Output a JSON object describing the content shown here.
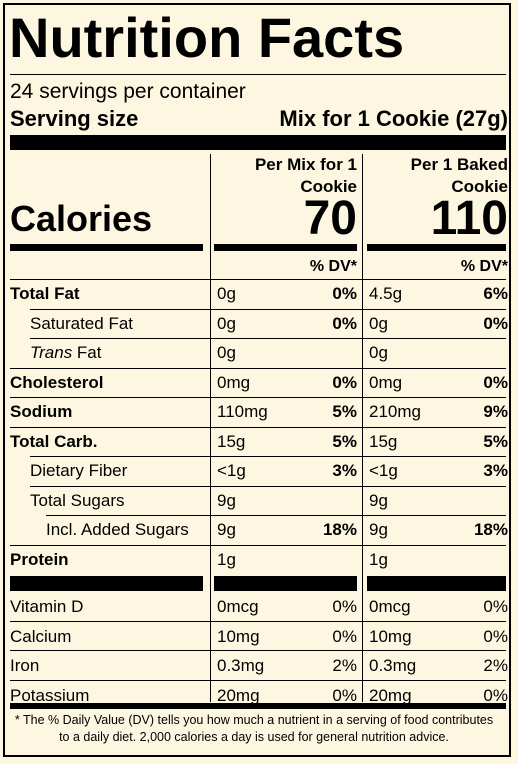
{
  "title": "Nutrition Facts",
  "servings_per_container": "24 servings per container",
  "serving_size_label": "Serving size",
  "serving_size_value": "Mix for 1 Cookie (27g)",
  "columns": [
    {
      "header_line1": "Per Mix for 1",
      "header_line2": "Cookie",
      "calories": "70"
    },
    {
      "header_line1": "Per 1 Baked",
      "header_line2": "Cookie",
      "calories": "110"
    }
  ],
  "calories_label": "Calories",
  "dv_label": "% DV*",
  "nutrients": [
    {
      "name": "Total Fat",
      "bold": true,
      "indent": 0,
      "mix_amt": "0g",
      "mix_dv": "0%",
      "baked_amt": "4.5g",
      "baked_dv": "6%"
    },
    {
      "name": "Saturated Fat",
      "bold": false,
      "indent": 1,
      "mix_amt": "0g",
      "mix_dv": "0%",
      "baked_amt": "0g",
      "baked_dv": "0%"
    },
    {
      "name_italic": "Trans",
      "name": " Fat",
      "bold": false,
      "indent": 1,
      "mix_amt": "0g",
      "mix_dv": "",
      "baked_amt": "0g",
      "baked_dv": ""
    },
    {
      "name": "Cholesterol",
      "bold": true,
      "indent": 0,
      "mix_amt": "0mg",
      "mix_dv": "0%",
      "baked_amt": "0mg",
      "baked_dv": "0%"
    },
    {
      "name": "Sodium",
      "bold": true,
      "indent": 0,
      "mix_amt": "110mg",
      "mix_dv": "5%",
      "baked_amt": "210mg",
      "baked_dv": "9%"
    },
    {
      "name": "Total Carb.",
      "bold": true,
      "indent": 0,
      "mix_amt": "15g",
      "mix_dv": "5%",
      "baked_amt": "15g",
      "baked_dv": "5%"
    },
    {
      "name": "Dietary Fiber",
      "bold": false,
      "indent": 1,
      "mix_amt": "<1g",
      "mix_dv": "3%",
      "baked_amt": "<1g",
      "baked_dv": "3%"
    },
    {
      "name": "Total Sugars",
      "bold": false,
      "indent": 1,
      "mix_amt": "9g",
      "mix_dv": "",
      "baked_amt": "9g",
      "baked_dv": ""
    },
    {
      "name": "Incl. Added Sugars",
      "bold": false,
      "indent": 2,
      "mix_amt": "9g",
      "mix_dv": "18%",
      "baked_amt": "9g",
      "baked_dv": "18%"
    },
    {
      "name": "Protein",
      "bold": true,
      "indent": 0,
      "mix_amt": "1g",
      "mix_dv": "",
      "baked_amt": "1g",
      "baked_dv": ""
    }
  ],
  "minerals": [
    {
      "name": "Vitamin D",
      "mix_amt": "0mcg",
      "mix_dv": "0%",
      "baked_amt": "0mcg",
      "baked_dv": "0%"
    },
    {
      "name": "Calcium",
      "mix_amt": "10mg",
      "mix_dv": "0%",
      "baked_amt": "10mg",
      "baked_dv": "0%"
    },
    {
      "name": "Iron",
      "mix_amt": "0.3mg",
      "mix_dv": "2%",
      "baked_amt": "0.3mg",
      "baked_dv": "2%"
    },
    {
      "name": "Potassium",
      "mix_amt": "20mg",
      "mix_dv": "0%",
      "baked_amt": "20mg",
      "baked_dv": "0%"
    }
  ],
  "footnote": "* The % Daily Value (DV) tells you how much a nutrient in a serving of food contributes to a daily diet. 2,000 calories a day is used for general nutrition advice.",
  "colors": {
    "background": "#fdf7e2",
    "ink": "#000000"
  }
}
